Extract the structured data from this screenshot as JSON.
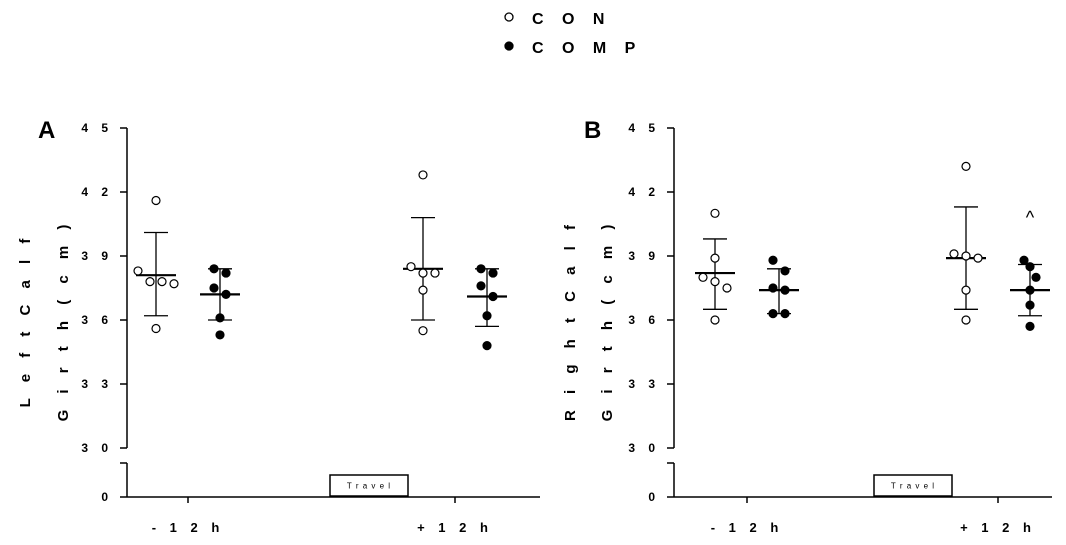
{
  "legend": {
    "con_label": "C O N",
    "comp_label": "C O M P"
  },
  "colors": {
    "con": "#ffffff",
    "comp": "#000000",
    "stroke": "#000000"
  },
  "chart_data": [
    {
      "type": "scatter",
      "panel": "A",
      "ylabel_line1": "L e f t   C a l f",
      "ylabel_line2": "G i r t h   ( c m )",
      "categories": [
        "- 1 2   h",
        "+ 1 2   h"
      ],
      "y_ticks": [
        0,
        30,
        33,
        36,
        39,
        42,
        45
      ],
      "y_tick_labels": [
        "0",
        "3 0",
        "3 3",
        "3 6",
        "3 9",
        "4 2",
        "4 5"
      ],
      "ylim_lower": [
        0,
        30
      ],
      "ylim_upper": [
        30,
        45
      ],
      "annotation_box": "T r a v e l",
      "groups": [
        {
          "category": 0,
          "group": "CON",
          "mean": 38.1,
          "sd_low": 36.2,
          "sd_high": 40.1,
          "points": [
            41.6,
            38.3,
            37.8,
            37.8,
            37.7,
            35.6
          ]
        },
        {
          "category": 0,
          "group": "COMP",
          "mean": 37.2,
          "sd_low": 36.0,
          "sd_high": 38.4,
          "points": [
            38.4,
            38.2,
            37.5,
            37.2,
            36.1,
            35.3
          ]
        },
        {
          "category": 1,
          "group": "CON",
          "mean": 38.4,
          "sd_low": 36.0,
          "sd_high": 40.8,
          "points": [
            42.8,
            38.5,
            38.2,
            38.2,
            37.4,
            35.5
          ]
        },
        {
          "category": 1,
          "group": "COMP",
          "mean": 37.1,
          "sd_low": 35.7,
          "sd_high": 38.4,
          "points": [
            38.4,
            38.2,
            37.6,
            37.1,
            36.2,
            34.8
          ]
        }
      ],
      "annotations": []
    },
    {
      "type": "scatter",
      "panel": "B",
      "ylabel_line1": "R i g h t   C a l f",
      "ylabel_line2": "G i r t h   ( c m )",
      "categories": [
        "- 1 2   h",
        "+ 1 2   h"
      ],
      "y_ticks": [
        0,
        30,
        33,
        36,
        39,
        42,
        45
      ],
      "y_tick_labels": [
        "0",
        "3 0",
        "3 3",
        "3 6",
        "3 9",
        "4 2",
        "4 5"
      ],
      "ylim_lower": [
        0,
        30
      ],
      "ylim_upper": [
        30,
        45
      ],
      "annotation_box": "T r a v e l",
      "groups": [
        {
          "category": 0,
          "group": "CON",
          "mean": 38.2,
          "sd_low": 36.5,
          "sd_high": 39.8,
          "points": [
            41.0,
            38.9,
            38.0,
            37.8,
            37.5,
            36.0
          ]
        },
        {
          "category": 0,
          "group": "COMP",
          "mean": 37.4,
          "sd_low": 36.3,
          "sd_high": 38.4,
          "points": [
            38.8,
            38.3,
            37.5,
            37.4,
            36.3,
            36.3
          ]
        },
        {
          "category": 1,
          "group": "CON",
          "mean": 38.9,
          "sd_low": 36.5,
          "sd_high": 41.3,
          "points": [
            43.2,
            39.1,
            39.0,
            38.9,
            37.4,
            36.0
          ]
        },
        {
          "category": 1,
          "group": "COMP",
          "mean": 37.4,
          "sd_low": 36.2,
          "sd_high": 38.6,
          "points": [
            38.8,
            38.5,
            38.0,
            37.4,
            36.7,
            35.7
          ]
        }
      ],
      "annotations": [
        {
          "category": 1,
          "group": "COMP",
          "y": 40.9,
          "text": "^"
        }
      ]
    }
  ]
}
